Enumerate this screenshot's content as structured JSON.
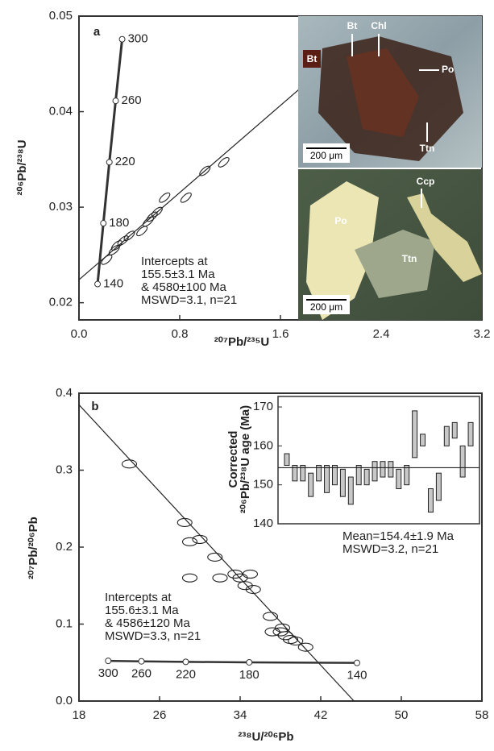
{
  "chart_data": [
    {
      "type": "scatter",
      "panel": "a",
      "xlabel": "²⁰⁷Pb/²³⁵U",
      "ylabel": "²⁰⁶Pb/²³⁸U",
      "xlim": [
        0,
        3.2
      ],
      "ylim": [
        0.0182,
        0.05
      ],
      "xticks": [
        {
          "value": 0,
          "label": "0.0"
        },
        0.8,
        1.6,
        2.4,
        3.2
      ],
      "yticks": [
        0.02,
        0.03,
        0.04,
        0.05
      ],
      "concordia": {
        "x": [
          0.1476,
          0.1937,
          0.2414,
          0.2913,
          0.3429
        ],
        "values": [
          0.02195,
          0.02832,
          0.03471,
          0.04113,
          0.04758
        ],
        "point_labels": [
          "140",
          "180",
          "220",
          "260",
          "300"
        ]
      },
      "regression": {
        "x": [
          0,
          2.42
        ],
        "values": [
          0.0224,
          0.05
        ]
      },
      "ellipses": {
        "x": [
          1.82,
          1.15,
          1.0,
          0.85,
          0.68,
          0.62,
          0.58,
          0.55,
          0.5,
          0.4,
          0.35,
          0.3,
          0.28,
          0.22
        ],
        "values": [
          0.0432,
          0.0347,
          0.0338,
          0.031,
          0.031,
          0.0295,
          0.029,
          0.0285,
          0.0275,
          0.027,
          0.0265,
          0.026,
          0.0255,
          0.0245
        ]
      },
      "annotation": [
        "Intercepts at",
        "155.5±3.1 Ma",
        "& 4580±100 Ma",
        "MSWD=3.1, n=21"
      ]
    },
    {
      "type": "scatter",
      "panel": "b",
      "xlabel": "²³⁸U/²⁰⁶Pb",
      "ylabel": "²⁰⁷Pb/²⁰⁶Pb",
      "xlim": [
        18,
        58
      ],
      "ylim": [
        0,
        0.4
      ],
      "xticks": [
        18,
        26,
        34,
        42,
        50,
        58
      ],
      "yticks": [
        {
          "value": 0,
          "label": "0.0"
        },
        0.1,
        0.2,
        0.3,
        0.4
      ],
      "concordia": {
        "x": [
          20.9,
          24.2,
          28.6,
          34.9,
          45.6
        ],
        "values": [
          0.0522,
          0.0516,
          0.0509,
          0.0503,
          0.0496
        ],
        "point_labels": [
          "300",
          "260",
          "220",
          "180",
          "140"
        ]
      },
      "regression": {
        "x": [
          18,
          45.3
        ],
        "values": [
          0.385,
          0
        ]
      },
      "ellipses": {
        "x": [
          23,
          28.5,
          29,
          30,
          31.5,
          29,
          33.5,
          34,
          34.5,
          35,
          35.3,
          32,
          37,
          37.2,
          38,
          38.2,
          38.5,
          39,
          39.5,
          40.5
        ],
        "values": [
          0.308,
          0.232,
          0.207,
          0.21,
          0.187,
          0.16,
          0.165,
          0.16,
          0.15,
          0.165,
          0.145,
          0.16,
          0.11,
          0.09,
          0.09,
          0.095,
          0.085,
          0.08,
          0.078,
          0.07
        ]
      },
      "annotation": [
        "Intercepts at",
        "155.6±3.1 Ma",
        "& 4586±120 Ma",
        "MSWD=3.3, n=21"
      ]
    },
    {
      "type": "floating-bar",
      "ylabel": [
        "Corrected",
        "²⁰⁶Pb/²³⁸U age (Ma)"
      ],
      "ylim": [
        140,
        172.7
      ],
      "yticks": [
        140,
        150,
        160,
        170
      ],
      "low": [
        155,
        151,
        151,
        147,
        151,
        148,
        150,
        147,
        145,
        150,
        150,
        151,
        152,
        152,
        149,
        150,
        157,
        160,
        143,
        146,
        160,
        162,
        152,
        160
      ],
      "high": [
        158,
        155,
        155,
        153,
        155,
        155,
        155,
        154,
        152,
        155,
        154,
        156,
        156,
        156,
        154,
        155,
        169,
        163,
        149,
        153,
        165,
        166,
        160,
        166
      ],
      "mean": 154.4,
      "annotation": [
        "Mean=154.4±1.9 Ma",
        "MSWD=3.2, n=21"
      ]
    }
  ],
  "photos": [
    {
      "labels": [
        "Bt",
        "Bt",
        "Chl",
        "Po",
        "Ttn",
        "200 μm"
      ]
    },
    {
      "labels": [
        "Ccp",
        "Po",
        "Ttn",
        "200 μm"
      ]
    }
  ]
}
